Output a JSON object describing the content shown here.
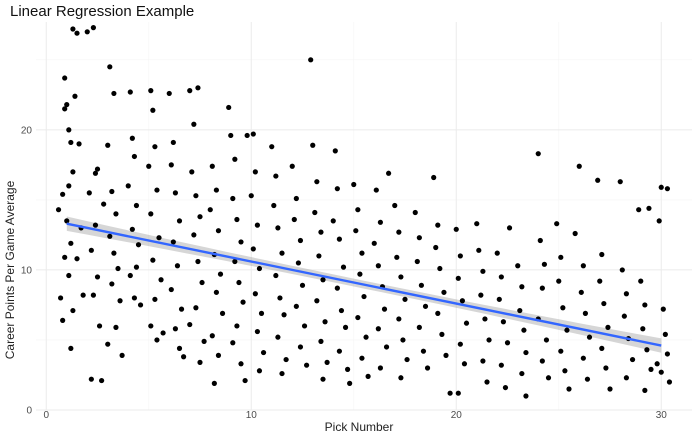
{
  "chart_data": {
    "type": "scatter",
    "title": "Linear Regression Example",
    "xlabel": "Pick Number",
    "ylabel": "Career Points Per Game Average",
    "xlim": [
      -0.5,
      31.5
    ],
    "ylim": [
      0,
      27.7
    ],
    "x_ticks": [
      0,
      10,
      20,
      30
    ],
    "y_ticks": [
      0,
      10,
      20
    ],
    "grid": true,
    "legend": "none",
    "point_color": "#000000",
    "regression": {
      "method": "linear",
      "color": "#3366ff",
      "band_color": "#999999",
      "x_range": [
        1,
        30
      ],
      "intercept": 13.6,
      "slope": -0.3
    },
    "series": [
      {
        "points": [
          [
            0.6,
            14.3
          ],
          [
            0.9,
            23.7
          ],
          [
            1.0,
            21.8
          ],
          [
            1.1,
            20.0
          ],
          [
            1.2,
            19.1
          ],
          [
            1.3,
            17.0
          ],
          [
            1.1,
            16.0
          ],
          [
            0.8,
            15.4
          ],
          [
            1.0,
            13.5
          ],
          [
            1.2,
            11.9
          ],
          [
            0.9,
            10.9
          ],
          [
            1.1,
            9.6
          ],
          [
            0.7,
            8.0
          ],
          [
            1.3,
            7.1
          ],
          [
            0.8,
            6.4
          ],
          [
            1.2,
            4.4
          ],
          [
            0.9,
            21.5
          ],
          [
            1.3,
            27.2
          ],
          [
            1.5,
            26.9
          ],
          [
            1.4,
            22.4
          ],
          [
            1.6,
            19.0
          ],
          [
            1.7,
            13.0
          ],
          [
            1.5,
            10.8
          ],
          [
            1.8,
            8.2
          ],
          [
            2.0,
            27.0
          ],
          [
            2.3,
            27.3
          ],
          [
            2.1,
            15.5
          ],
          [
            2.4,
            13.2
          ],
          [
            2.2,
            11.4
          ],
          [
            2.5,
            9.5
          ],
          [
            2.3,
            8.2
          ],
          [
            2.6,
            6.0
          ],
          [
            2.2,
            2.2
          ],
          [
            2.7,
            2.1
          ],
          [
            2.5,
            17.2
          ],
          [
            2.8,
            14.7
          ],
          [
            2.4,
            16.9
          ],
          [
            3.1,
            24.5
          ],
          [
            3.3,
            22.6
          ],
          [
            3.0,
            18.9
          ],
          [
            3.2,
            15.6
          ],
          [
            3.4,
            14.0
          ],
          [
            3.1,
            12.4
          ],
          [
            3.3,
            11.2
          ],
          [
            3.5,
            10.1
          ],
          [
            3.2,
            9.0
          ],
          [
            3.6,
            7.8
          ],
          [
            3.4,
            5.9
          ],
          [
            3.0,
            4.7
          ],
          [
            3.7,
            3.9
          ],
          [
            4.1,
            22.7
          ],
          [
            4.2,
            19.4
          ],
          [
            4.3,
            18.1
          ],
          [
            4.0,
            16.0
          ],
          [
            4.4,
            14.6
          ],
          [
            4.2,
            12.9
          ],
          [
            4.5,
            11.8
          ],
          [
            4.1,
            9.6
          ],
          [
            4.3,
            8.0
          ],
          [
            4.6,
            7.5
          ],
          [
            4.4,
            10.2
          ],
          [
            5.1,
            22.8
          ],
          [
            5.2,
            21.4
          ],
          [
            5.3,
            18.8
          ],
          [
            5.0,
            17.4
          ],
          [
            5.4,
            15.7
          ],
          [
            5.1,
            14.0
          ],
          [
            5.5,
            12.3
          ],
          [
            5.2,
            10.7
          ],
          [
            5.6,
            9.3
          ],
          [
            5.3,
            7.9
          ],
          [
            5.1,
            6.0
          ],
          [
            5.4,
            5.0
          ],
          [
            5.7,
            5.5
          ],
          [
            6.0,
            22.6
          ],
          [
            6.2,
            19.1
          ],
          [
            6.1,
            17.5
          ],
          [
            6.3,
            15.5
          ],
          [
            6.5,
            13.5
          ],
          [
            6.2,
            12.0
          ],
          [
            6.4,
            10.3
          ],
          [
            6.1,
            8.6
          ],
          [
            6.6,
            7.2
          ],
          [
            6.3,
            5.8
          ],
          [
            6.5,
            4.4
          ],
          [
            6.7,
            3.8
          ],
          [
            7.0,
            22.8
          ],
          [
            7.2,
            20.4
          ],
          [
            7.1,
            17.0
          ],
          [
            7.3,
            15.3
          ],
          [
            7.5,
            13.8
          ],
          [
            7.2,
            12.5
          ],
          [
            7.4,
            10.6
          ],
          [
            7.6,
            9.1
          ],
          [
            7.3,
            7.3
          ],
          [
            7.0,
            6.1
          ],
          [
            7.7,
            4.9
          ],
          [
            7.5,
            3.4
          ],
          [
            7.4,
            23.0
          ],
          [
            8.1,
            17.4
          ],
          [
            8.3,
            15.7
          ],
          [
            8.0,
            14.3
          ],
          [
            8.4,
            12.8
          ],
          [
            8.2,
            11.1
          ],
          [
            8.5,
            9.7
          ],
          [
            8.3,
            8.4
          ],
          [
            8.6,
            6.9
          ],
          [
            8.1,
            5.3
          ],
          [
            8.4,
            3.9
          ],
          [
            8.2,
            1.9
          ],
          [
            8.9,
            21.6
          ],
          [
            9.0,
            19.6
          ],
          [
            9.2,
            17.9
          ],
          [
            9.1,
            15.1
          ],
          [
            9.3,
            13.6
          ],
          [
            9.5,
            12.0
          ],
          [
            9.2,
            10.6
          ],
          [
            9.4,
            9.1
          ],
          [
            9.6,
            7.7
          ],
          [
            9.3,
            6.0
          ],
          [
            9.1,
            4.8
          ],
          [
            9.5,
            3.3
          ],
          [
            9.7,
            2.1
          ],
          [
            9.8,
            19.6
          ],
          [
            10.1,
            19.7
          ],
          [
            10.2,
            17.0
          ],
          [
            10.0,
            15.3
          ],
          [
            10.3,
            13.2
          ],
          [
            10.1,
            11.5
          ],
          [
            10.4,
            10.1
          ],
          [
            10.2,
            8.3
          ],
          [
            10.5,
            6.9
          ],
          [
            10.3,
            5.6
          ],
          [
            10.6,
            4.1
          ],
          [
            10.4,
            2.8
          ],
          [
            11.0,
            18.8
          ],
          [
            11.2,
            16.7
          ],
          [
            11.1,
            14.6
          ],
          [
            11.3,
            13.0
          ],
          [
            11.5,
            11.2
          ],
          [
            11.2,
            9.6
          ],
          [
            11.4,
            8.0
          ],
          [
            11.6,
            6.8
          ],
          [
            11.3,
            5.2
          ],
          [
            11.7,
            3.6
          ],
          [
            11.5,
            2.6
          ],
          [
            12.0,
            17.4
          ],
          [
            12.2,
            15.1
          ],
          [
            12.1,
            13.6
          ],
          [
            12.4,
            12.1
          ],
          [
            12.3,
            10.5
          ],
          [
            12.5,
            8.9
          ],
          [
            12.2,
            7.4
          ],
          [
            12.6,
            6.0
          ],
          [
            12.4,
            4.5
          ],
          [
            12.7,
            3.2
          ],
          [
            12.9,
            25.0
          ],
          [
            13.0,
            18.9
          ],
          [
            13.2,
            16.3
          ],
          [
            13.1,
            14.1
          ],
          [
            13.4,
            12.7
          ],
          [
            13.3,
            11.0
          ],
          [
            13.5,
            9.3
          ],
          [
            13.2,
            7.8
          ],
          [
            13.6,
            6.3
          ],
          [
            13.4,
            4.9
          ],
          [
            13.7,
            3.4
          ],
          [
            13.5,
            2.2
          ],
          [
            14.1,
            18.5
          ],
          [
            14.2,
            15.8
          ],
          [
            14.0,
            13.5
          ],
          [
            14.3,
            12.2
          ],
          [
            14.5,
            10.2
          ],
          [
            14.2,
            8.7
          ],
          [
            14.4,
            7.1
          ],
          [
            14.6,
            5.9
          ],
          [
            14.3,
            4.2
          ],
          [
            14.7,
            2.9
          ],
          [
            14.8,
            1.9
          ],
          [
            15.0,
            16.1
          ],
          [
            15.2,
            14.3
          ],
          [
            15.1,
            12.8
          ],
          [
            15.4,
            11.2
          ],
          [
            15.3,
            9.7
          ],
          [
            15.5,
            8.1
          ],
          [
            15.2,
            6.6
          ],
          [
            15.6,
            5.2
          ],
          [
            15.4,
            3.7
          ],
          [
            15.7,
            2.4
          ],
          [
            16.1,
            15.7
          ],
          [
            16.3,
            13.4
          ],
          [
            16.0,
            11.9
          ],
          [
            16.2,
            10.3
          ],
          [
            16.4,
            8.8
          ],
          [
            16.5,
            7.2
          ],
          [
            16.2,
            5.8
          ],
          [
            16.6,
            4.5
          ],
          [
            16.3,
            3.0
          ],
          [
            16.7,
            16.9
          ],
          [
            17.0,
            14.6
          ],
          [
            17.2,
            12.7
          ],
          [
            17.1,
            10.9
          ],
          [
            17.3,
            9.5
          ],
          [
            17.5,
            7.9
          ],
          [
            17.2,
            6.5
          ],
          [
            17.4,
            5.0
          ],
          [
            17.6,
            3.6
          ],
          [
            17.3,
            2.3
          ],
          [
            18.0,
            14.1
          ],
          [
            18.2,
            12.3
          ],
          [
            18.1,
            10.6
          ],
          [
            18.3,
            8.9
          ],
          [
            18.5,
            7.4
          ],
          [
            18.2,
            5.9
          ],
          [
            18.4,
            4.2
          ],
          [
            18.6,
            3.0
          ],
          [
            18.9,
            16.6
          ],
          [
            19.1,
            13.2
          ],
          [
            19.0,
            11.6
          ],
          [
            19.2,
            10.1
          ],
          [
            19.4,
            8.4
          ],
          [
            19.1,
            6.9
          ],
          [
            19.3,
            5.4
          ],
          [
            19.5,
            3.9
          ],
          [
            19.7,
            1.2
          ],
          [
            20.0,
            12.9
          ],
          [
            20.2,
            11.0
          ],
          [
            20.1,
            9.4
          ],
          [
            20.3,
            7.8
          ],
          [
            20.5,
            6.2
          ],
          [
            20.2,
            4.7
          ],
          [
            20.4,
            3.3
          ],
          [
            20.1,
            1.2
          ],
          [
            21.0,
            13.3
          ],
          [
            21.1,
            11.4
          ],
          [
            21.3,
            9.9
          ],
          [
            21.2,
            8.2
          ],
          [
            21.4,
            6.5
          ],
          [
            21.6,
            5.0
          ],
          [
            21.3,
            3.5
          ],
          [
            21.5,
            2.0
          ],
          [
            22.0,
            11.2
          ],
          [
            22.2,
            9.5
          ],
          [
            22.1,
            7.9
          ],
          [
            22.3,
            6.3
          ],
          [
            22.5,
            4.8
          ],
          [
            22.2,
            3.2
          ],
          [
            22.4,
            1.6
          ],
          [
            22.6,
            13.0
          ],
          [
            23.0,
            10.3
          ],
          [
            23.2,
            8.8
          ],
          [
            23.1,
            7.1
          ],
          [
            23.3,
            5.7
          ],
          [
            23.4,
            4.1
          ],
          [
            23.2,
            2.6
          ],
          [
            23.4,
            1.0
          ],
          [
            24.0,
            18.3
          ],
          [
            24.1,
            12.1
          ],
          [
            24.3,
            10.4
          ],
          [
            24.2,
            8.7
          ],
          [
            24.0,
            6.5
          ],
          [
            24.4,
            5.0
          ],
          [
            24.2,
            3.5
          ],
          [
            24.5,
            2.3
          ],
          [
            24.9,
            13.3
          ],
          [
            25.1,
            10.9
          ],
          [
            25.0,
            9.2
          ],
          [
            25.2,
            7.3
          ],
          [
            25.4,
            5.7
          ],
          [
            25.1,
            4.2
          ],
          [
            25.3,
            2.8
          ],
          [
            25.5,
            1.5
          ],
          [
            25.8,
            12.6
          ],
          [
            26.0,
            17.4
          ],
          [
            26.2,
            10.3
          ],
          [
            26.1,
            8.4
          ],
          [
            26.3,
            6.9
          ],
          [
            26.5,
            5.2
          ],
          [
            26.2,
            3.7
          ],
          [
            26.4,
            2.2
          ],
          [
            26.9,
            16.4
          ],
          [
            27.1,
            11.1
          ],
          [
            27.0,
            9.2
          ],
          [
            27.2,
            7.6
          ],
          [
            27.4,
            5.9
          ],
          [
            27.1,
            4.4
          ],
          [
            27.3,
            3.0
          ],
          [
            27.5,
            1.5
          ],
          [
            28.0,
            16.3
          ],
          [
            28.1,
            10.0
          ],
          [
            28.3,
            8.3
          ],
          [
            28.2,
            6.7
          ],
          [
            28.4,
            5.1
          ],
          [
            28.6,
            3.6
          ],
          [
            28.3,
            2.3
          ],
          [
            28.9,
            14.3
          ],
          [
            29.0,
            9.2
          ],
          [
            29.2,
            7.5
          ],
          [
            29.1,
            5.8
          ],
          [
            29.3,
            4.3
          ],
          [
            29.5,
            2.9
          ],
          [
            29.2,
            1.4
          ],
          [
            29.4,
            14.4
          ],
          [
            29.9,
            13.5
          ],
          [
            30.0,
            15.9
          ],
          [
            30.3,
            15.8
          ],
          [
            30.1,
            7.2
          ],
          [
            30.2,
            5.4
          ],
          [
            30.3,
            4.0
          ],
          [
            30.0,
            2.7
          ],
          [
            30.4,
            2.0
          ],
          [
            29.8,
            3.3
          ]
        ]
      }
    ]
  }
}
